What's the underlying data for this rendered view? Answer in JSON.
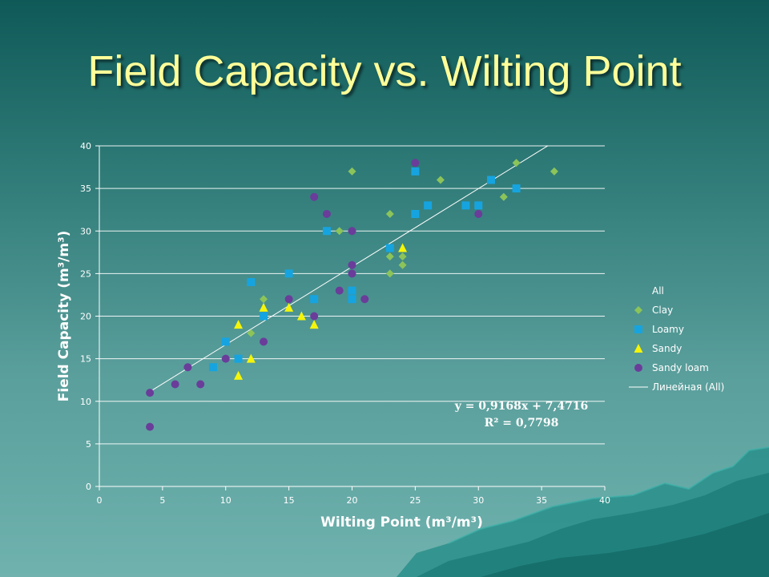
{
  "slide": {
    "title": "Field Capacity vs. Wilting Point"
  },
  "chart_data": {
    "type": "scatter",
    "title": "",
    "xlabel": "Wilting Point (m³/m³)",
    "ylabel": "Field Capacity (m³/m³)",
    "xlim": [
      0,
      40
    ],
    "ylim": [
      0,
      40
    ],
    "xticks": [
      0,
      5,
      10,
      15,
      20,
      25,
      30,
      35,
      40
    ],
    "yticks": [
      0,
      5,
      10,
      15,
      20,
      25,
      30,
      35,
      40
    ],
    "grid": "horizontal",
    "legend_placement": "right",
    "legend_header": "All",
    "series": [
      {
        "name": "Clay",
        "marker": "diamond",
        "color": "#8cc45a",
        "points": [
          [
            12,
            18
          ],
          [
            13,
            22
          ],
          [
            19,
            30
          ],
          [
            20,
            37
          ],
          [
            23,
            32
          ],
          [
            23,
            27
          ],
          [
            23,
            25
          ],
          [
            24,
            27
          ],
          [
            24,
            26
          ],
          [
            27,
            36
          ],
          [
            32,
            34
          ],
          [
            33,
            38
          ],
          [
            36,
            37
          ]
        ]
      },
      {
        "name": "Loamy",
        "marker": "square",
        "color": "#16a4e0",
        "points": [
          [
            9,
            14
          ],
          [
            10,
            17
          ],
          [
            11,
            15
          ],
          [
            12,
            24
          ],
          [
            13,
            20
          ],
          [
            15,
            25
          ],
          [
            17,
            22
          ],
          [
            18,
            30
          ],
          [
            20,
            23
          ],
          [
            20,
            22
          ],
          [
            23,
            28
          ],
          [
            25,
            37
          ],
          [
            25,
            32
          ],
          [
            26,
            33
          ],
          [
            29,
            33
          ],
          [
            30,
            33
          ],
          [
            31,
            36
          ],
          [
            33,
            35
          ]
        ]
      },
      {
        "name": "Sandy",
        "marker": "triangle",
        "color": "#f5f50a",
        "points": [
          [
            11,
            19
          ],
          [
            11,
            13
          ],
          [
            12,
            15
          ],
          [
            13,
            21
          ],
          [
            15,
            21
          ],
          [
            16,
            20
          ],
          [
            17,
            19
          ],
          [
            24,
            28
          ]
        ]
      },
      {
        "name": "Sandy loam",
        "marker": "circle",
        "color": "#6a3d9a",
        "points": [
          [
            4,
            11
          ],
          [
            4,
            7
          ],
          [
            6,
            12
          ],
          [
            7,
            14
          ],
          [
            8,
            12
          ],
          [
            10,
            15
          ],
          [
            13,
            17
          ],
          [
            15,
            22
          ],
          [
            17,
            34
          ],
          [
            17,
            20
          ],
          [
            18,
            32
          ],
          [
            19,
            23
          ],
          [
            20,
            30
          ],
          [
            20,
            26
          ],
          [
            20,
            25
          ],
          [
            21,
            22
          ],
          [
            25,
            38
          ],
          [
            30,
            32
          ]
        ]
      }
    ],
    "trendline": {
      "name": "Линейная (All)",
      "slope": 0.9168,
      "intercept": 7.4716,
      "x_range": [
        4,
        35.5
      ],
      "color": "#ffffff",
      "equation": "y = 0,9168x + 7,4716",
      "r2": "R² = 0,7798"
    }
  }
}
